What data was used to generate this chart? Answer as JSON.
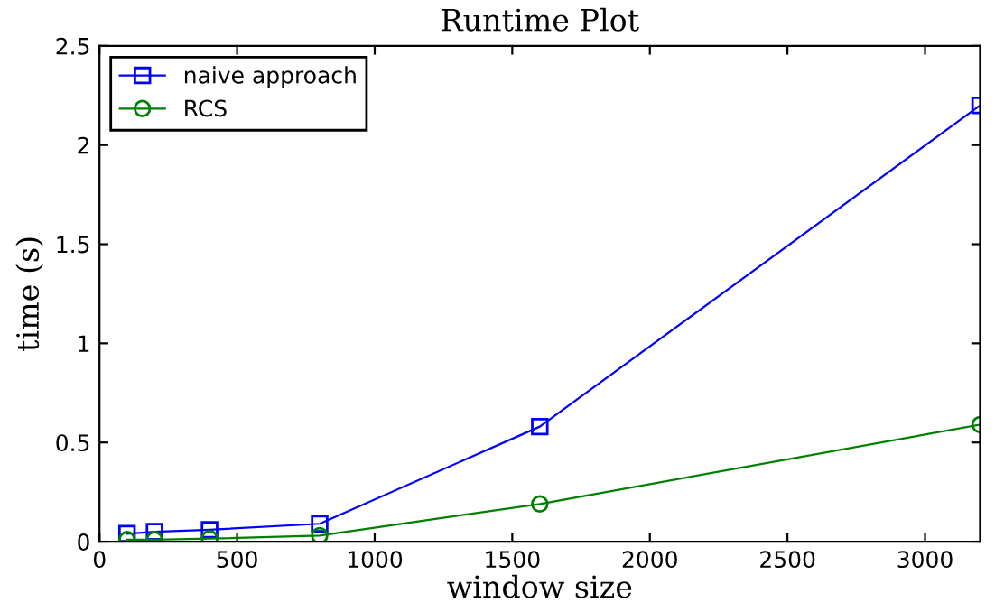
{
  "chart_data": {
    "type": "line",
    "title": "Runtime Plot",
    "xlabel": "window size",
    "ylabel": "time (s)",
    "x": [
      100,
      200,
      400,
      800,
      1600,
      3200
    ],
    "series": [
      {
        "name": "naive approach",
        "color": "#0000ff",
        "marker": "square",
        "values": [
          0.04,
          0.05,
          0.06,
          0.09,
          0.58,
          2.2
        ]
      },
      {
        "name": "RCS",
        "color": "#008000",
        "marker": "circle",
        "values": [
          0.01,
          0.01,
          0.015,
          0.03,
          0.19,
          0.59
        ]
      }
    ],
    "xlim": [
      0,
      3200
    ],
    "xticks": [
      0,
      500,
      1000,
      1500,
      2000,
      2500,
      3000
    ],
    "ylim": [
      0,
      2.5
    ],
    "yticks": [
      0,
      0.5,
      1,
      1.5,
      2,
      2.5
    ],
    "grid": false,
    "legend": "top left",
    "line_style": "solid"
  }
}
